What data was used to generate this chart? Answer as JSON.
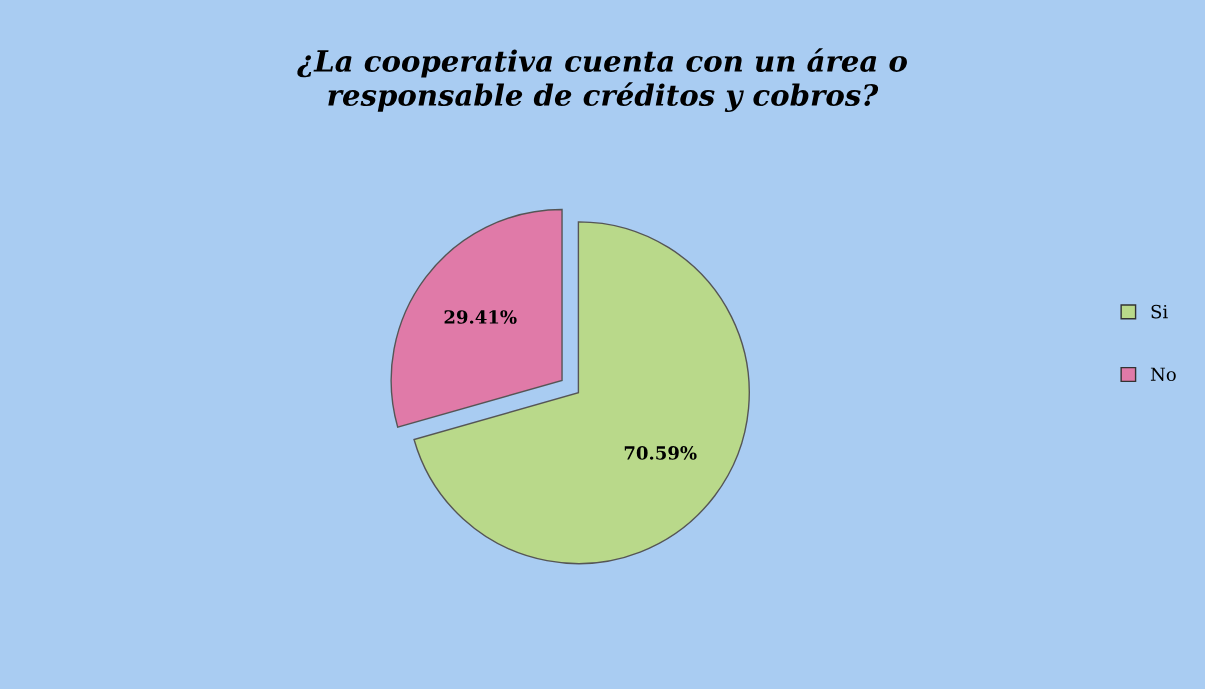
{
  "chart_data": {
    "type": "pie",
    "title": "¿La cooperativa cuenta con un área o\nresponsable de créditos y cobros?",
    "categories": [
      "Si",
      "No"
    ],
    "values": [
      70.59,
      29.41
    ],
    "colors": [
      "#b9d98a",
      "#e07aa8"
    ],
    "value_labels": [
      "70.59%",
      "29.41%"
    ],
    "legend": "right"
  }
}
